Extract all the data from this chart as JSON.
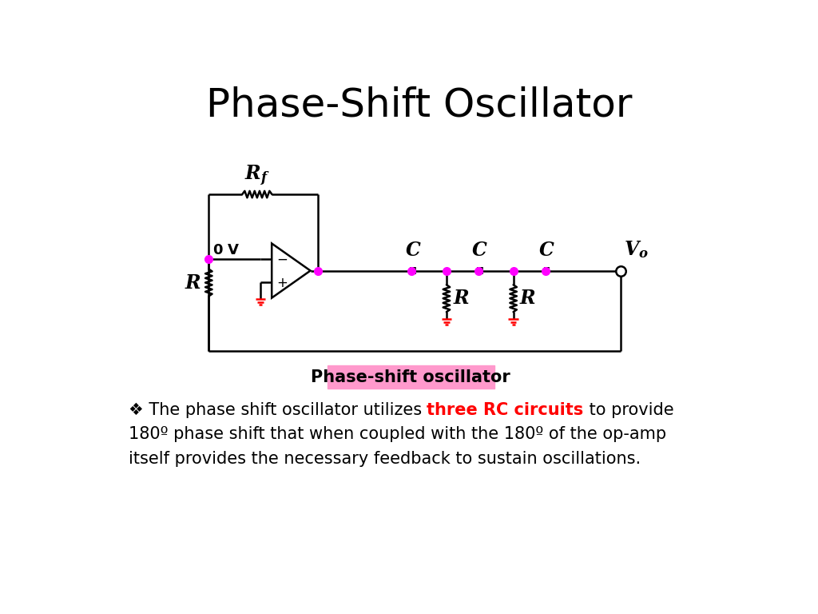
{
  "title": "Phase-Shift Oscillator",
  "title_fontsize": 36,
  "background_color": "#ffffff",
  "line_color": "#000000",
  "dot_color": "#ff00ff",
  "ground_color": "#ff0000",
  "label_box_color": "#ff99cc",
  "label_box_text": "Phase-shift oscillator",
  "desc_part1": "❖ The phase shift oscillator utilizes ",
  "desc_highlight": "three RC circuits",
  "desc_part2": " to provide",
  "desc_line2": "180º phase shift that when coupled with the 180º of the op-amp",
  "desc_line3": "itself provides the necessary feedback to sustain oscillations."
}
